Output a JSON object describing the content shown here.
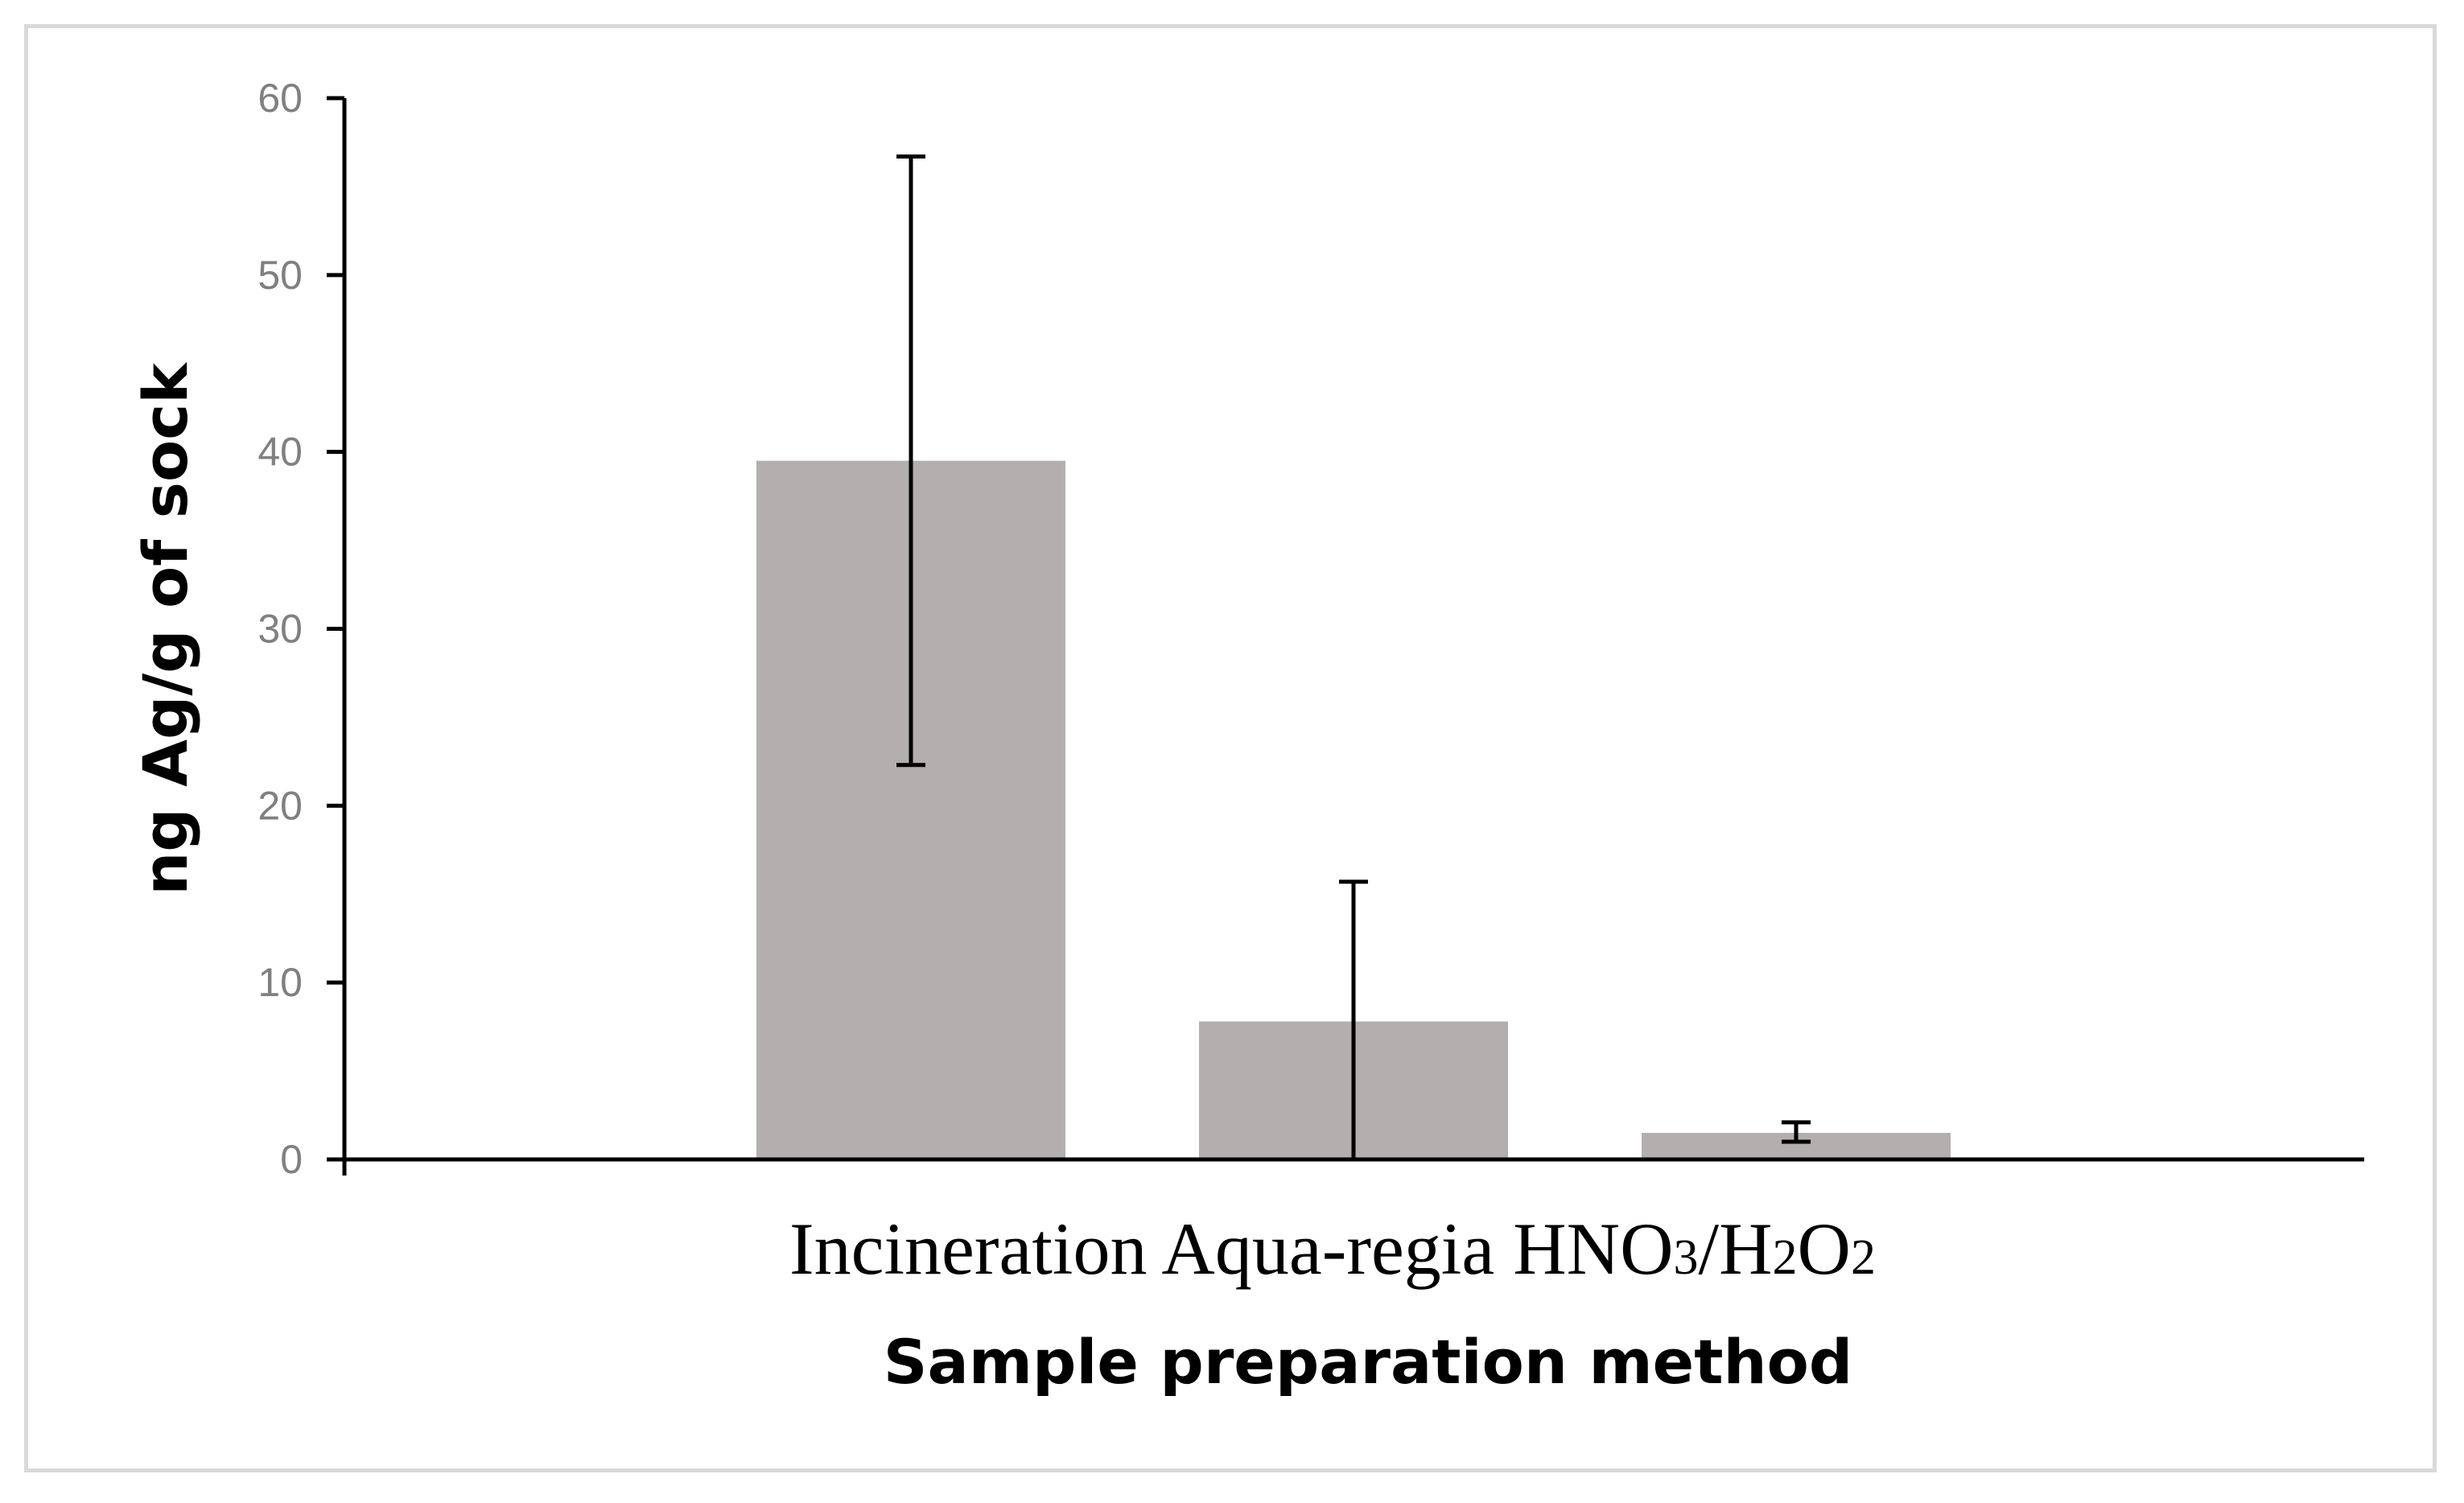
{
  "chart_data": {
    "type": "bar",
    "categories": [
      "Incineration",
      "Aqua-regia",
      "HNO3/H2O2"
    ],
    "category_label_parts": [
      [
        {
          "t": "Incineration",
          "sub": false
        }
      ],
      [
        {
          "t": "Aqua-regia",
          "sub": false
        }
      ],
      [
        {
          "t": "HNO",
          "sub": false
        },
        {
          "t": "3",
          "sub": true
        },
        {
          "t": "/H",
          "sub": false
        },
        {
          "t": "2",
          "sub": true
        },
        {
          "t": "O",
          "sub": false
        },
        {
          "t": "2",
          "sub": true
        }
      ]
    ],
    "values": [
      39.5,
      7.8,
      1.5
    ],
    "error_low": [
      22.3,
      0,
      1.0
    ],
    "error_high": [
      56.7,
      15.7,
      2.1
    ],
    "title": "",
    "xlabel": "Sample preparation method",
    "ylabel": "ng Ag/g of sock",
    "ylim": [
      0,
      60
    ],
    "yticks": [
      0,
      10,
      20,
      30,
      40,
      50,
      60
    ],
    "bar_color": "#b2afae",
    "axis_color": "#000000",
    "tick_label_color": "#808080",
    "grid": false,
    "legend": "none"
  }
}
